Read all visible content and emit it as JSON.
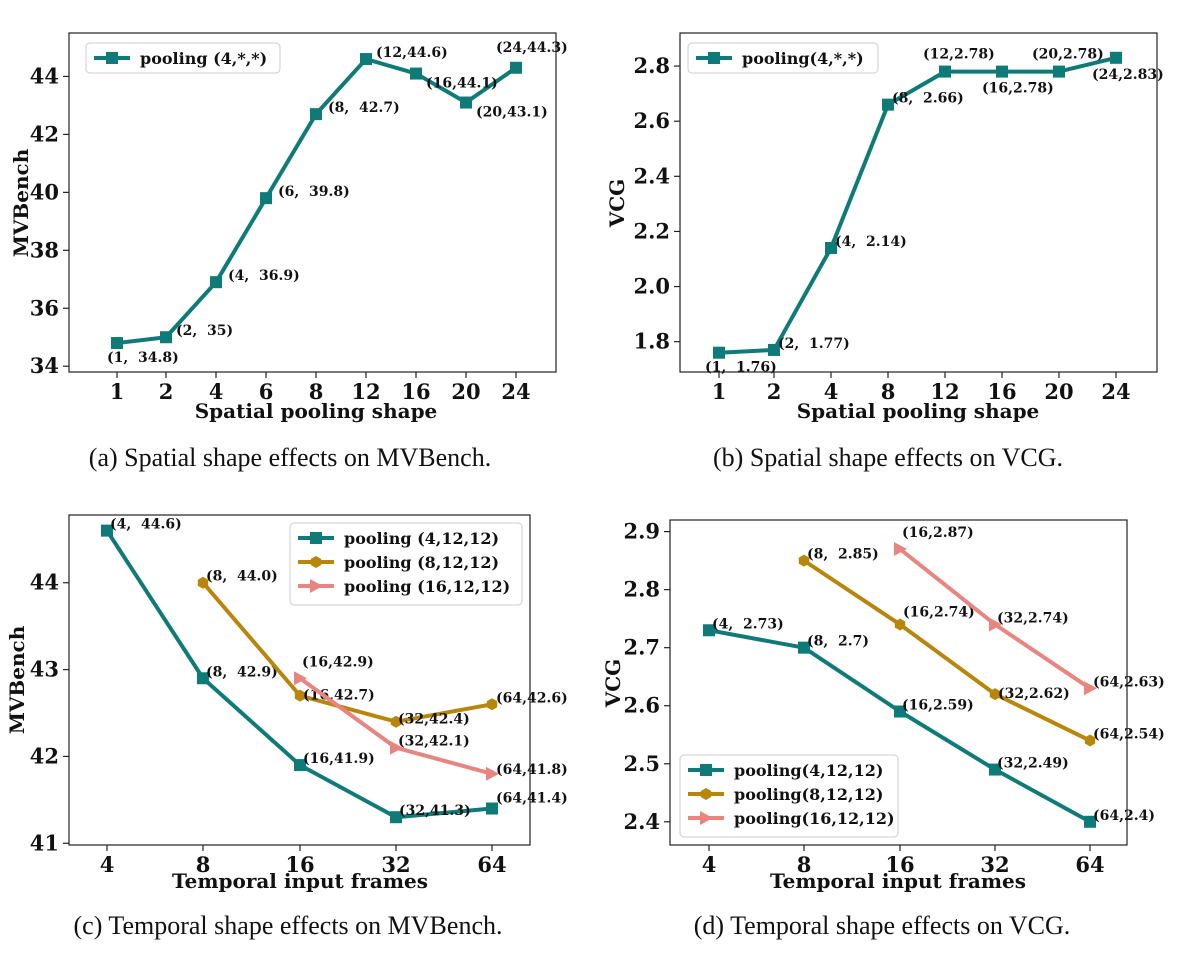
{
  "colors": {
    "teal": "#0f7b78",
    "gold": "#b8860b",
    "salmon": "#e98581",
    "axis": "#222222"
  },
  "chart_data": [
    {
      "type": "line",
      "panel": "a",
      "caption": "(a)  Spatial shape effects on MVBench.",
      "xlabel": "Spatial pooling shape",
      "ylabel": "MVBench",
      "categories": [
        "1",
        "2",
        "4",
        "6",
        "8",
        "12",
        "16",
        "20",
        "24"
      ],
      "ylim": [
        33.8,
        45.5
      ],
      "yticks": [
        "34",
        "36",
        "38",
        "40",
        "42",
        "44"
      ],
      "legend": "upper-left",
      "series": [
        {
          "name": "pooling (4,*,*)",
          "color": "#0f7b78",
          "marker": "square",
          "values": [
            34.8,
            35,
            36.9,
            39.8,
            42.7,
            44.6,
            44.1,
            43.1,
            44.3
          ],
          "labels": [
            "(1,  34.8)",
            "(2,  35)",
            "(4,  36.9)",
            "(6,  39.8)",
            "(8,  42.7)",
            "(12,44.6)",
            "(16,44.1)",
            "(20,43.1)",
            "(24,44.3)"
          ]
        }
      ]
    },
    {
      "type": "line",
      "panel": "b",
      "caption": "(b)  Spatial shape effects on VCG.",
      "xlabel": "Spatial pooling shape",
      "ylabel": "VCG",
      "categories": [
        "1",
        "2",
        "4",
        "8",
        "12",
        "16",
        "20",
        "24"
      ],
      "ylim": [
        1.69,
        2.92
      ],
      "yticks": [
        "1.8",
        "2.0",
        "2.2",
        "2.4",
        "2.6",
        "2.8"
      ],
      "legend": "upper-left",
      "series": [
        {
          "name": "pooling(4,*,*)",
          "color": "#0f7b78",
          "marker": "square",
          "values": [
            1.76,
            1.77,
            2.14,
            2.66,
            2.78,
            2.78,
            2.78,
            2.83
          ],
          "labels": [
            "(1,  1.76)",
            "(2,  1.77)",
            "(4,  2.14)",
            "(8,  2.66)",
            "(12,2.78)",
            "(16,2.78)",
            "(20,2.78)",
            "(24,2.83)"
          ]
        }
      ]
    },
    {
      "type": "line",
      "panel": "c",
      "caption": "(c)  Temporal shape effects on MVBench.",
      "xlabel": "Temporal input frames",
      "ylabel": "MVBench",
      "categories": [
        "4",
        "8",
        "16",
        "32",
        "64"
      ],
      "ylim": [
        40.98,
        44.78
      ],
      "yticks": [
        "41",
        "42",
        "43",
        "44"
      ],
      "legend": "upper-right",
      "series": [
        {
          "name": "pooling (4,12,12)",
          "color": "#0f7b78",
          "marker": "square",
          "values": [
            44.6,
            42.9,
            41.9,
            41.3,
            41.4
          ],
          "labels": [
            "(4,  44.6)",
            "(8,  42.9)",
            "(16,41.9)",
            "(32,41.3)",
            "(64,41.4)"
          ]
        },
        {
          "name": "pooling (8,12,12)",
          "color": "#b8860b",
          "marker": "hexagon",
          "values": [
            null,
            44.0,
            42.7,
            42.4,
            42.6
          ],
          "labels": [
            "",
            "(8,  44.0)",
            "(16,42.7)",
            "(32,42.4)",
            "(64,42.6)"
          ]
        },
        {
          "name": "pooling (16,12,12)",
          "color": "#e98581",
          "marker": "triangle-right",
          "values": [
            null,
            null,
            42.9,
            42.1,
            41.8
          ],
          "labels": [
            "",
            "",
            "(16,42.9)",
            "(32,42.1)",
            "(64,41.8)"
          ]
        }
      ]
    },
    {
      "type": "line",
      "panel": "d",
      "caption": "(d)  Temporal shape effects on VCG.",
      "xlabel": "Temporal input frames",
      "ylabel": "VCG",
      "categories": [
        "4",
        "8",
        "16",
        "32",
        "64"
      ],
      "ylim": [
        2.36,
        2.92
      ],
      "yticks": [
        "2.4",
        "2.5",
        "2.6",
        "2.7",
        "2.8",
        "2.9"
      ],
      "legend": "lower-left",
      "series": [
        {
          "name": "pooling(4,12,12)",
          "color": "#0f7b78",
          "marker": "square",
          "values": [
            2.73,
            2.7,
            2.59,
            2.49,
            2.4
          ],
          "labels": [
            "(4,  2.73)",
            "(8,  2.7)",
            "(16,2.59)",
            "(32,2.49)",
            "(64,2.4)"
          ]
        },
        {
          "name": "pooling(8,12,12)",
          "color": "#b8860b",
          "marker": "hexagon",
          "values": [
            null,
            2.85,
            2.74,
            2.62,
            2.54
          ],
          "labels": [
            "",
            "(8,  2.85)",
            "(16,2.74)",
            "(32,2.62)",
            "(64,2.54)"
          ]
        },
        {
          "name": "pooling(16,12,12)",
          "color": "#e98581",
          "marker": "triangle-right",
          "values": [
            null,
            null,
            2.87,
            2.74,
            2.63
          ],
          "labels": [
            "",
            "",
            "(16,2.87)",
            "(32,2.74)",
            "(64,2.63)"
          ]
        }
      ]
    }
  ]
}
